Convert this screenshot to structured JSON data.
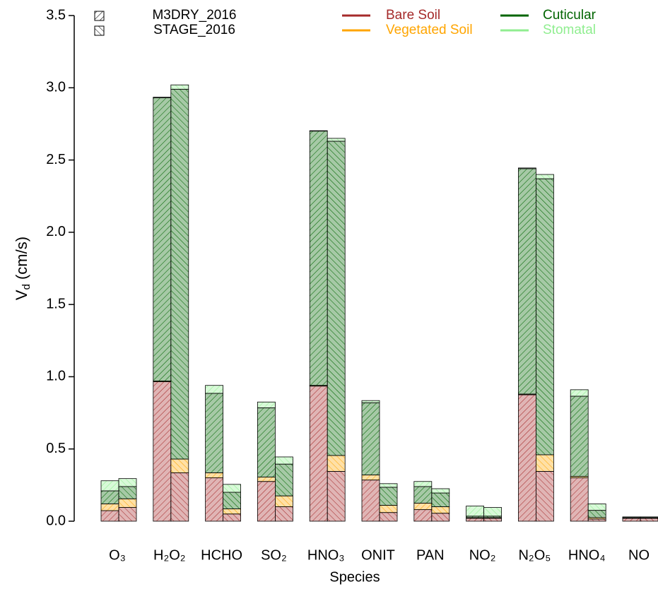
{
  "chart_data": {
    "type": "stacked-grouped-bar",
    "x_label": "Species",
    "y_label": {
      "symbol": "V",
      "subscript": "d",
      "unit": "(cm/s)"
    },
    "categories": [
      "O₃",
      "H₂O₂",
      "HCHO",
      "SO₂",
      "HNO₃",
      "ONIT",
      "PAN",
      "NO₂",
      "N₂O₅",
      "HNO₄",
      "NO"
    ],
    "components": [
      {
        "name": "Bare Soil",
        "color": "#a52a2a"
      },
      {
        "name": "Vegetated Soil",
        "color": "#ffa500"
      },
      {
        "name": "Cuticular",
        "color": "#006400"
      },
      {
        "name": "Stomatal",
        "color": "#90ee90"
      }
    ],
    "models": [
      {
        "name": "M3DRY_2016",
        "hatch": "forward",
        "values": [
          [
            0.073,
            0.965,
            0.3,
            0.275,
            0.935,
            0.285,
            0.08,
            0.02,
            0.875,
            0.3,
            0.02
          ],
          [
            0.047,
            0.005,
            0.035,
            0.03,
            0.005,
            0.035,
            0.045,
            0.005,
            0.005,
            0.01,
            0.003
          ],
          [
            0.09,
            1.96,
            0.55,
            0.48,
            1.76,
            0.5,
            0.115,
            0.01,
            1.56,
            0.555,
            0.002
          ],
          [
            0.07,
            0.005,
            0.055,
            0.04,
            0.003,
            0.015,
            0.035,
            0.07,
            0.005,
            0.045,
            0.005
          ]
        ]
      },
      {
        "name": "STAGE_2016",
        "hatch": "backward",
        "values": [
          [
            0.095,
            0.335,
            0.05,
            0.1,
            0.345,
            0.06,
            0.055,
            0.02,
            0.345,
            0.015,
            0.02
          ],
          [
            0.06,
            0.095,
            0.035,
            0.075,
            0.11,
            0.05,
            0.045,
            0.005,
            0.115,
            0.01,
            0.003
          ],
          [
            0.085,
            2.56,
            0.115,
            0.22,
            2.175,
            0.125,
            0.095,
            0.01,
            1.91,
            0.05,
            0.002
          ],
          [
            0.055,
            0.03,
            0.055,
            0.05,
            0.02,
            0.025,
            0.03,
            0.06,
            0.03,
            0.045,
            0.005
          ]
        ]
      }
    ],
    "ylim": [
      0,
      3.5
    ],
    "yticks": [
      {
        "value": 0,
        "label": "0.0"
      },
      0.5,
      {
        "value": 1,
        "label": "1.0"
      },
      1.5,
      {
        "value": 2,
        "label": "2.0"
      },
      2.5,
      {
        "value": 3,
        "label": "3.0"
      },
      3.5
    ]
  }
}
